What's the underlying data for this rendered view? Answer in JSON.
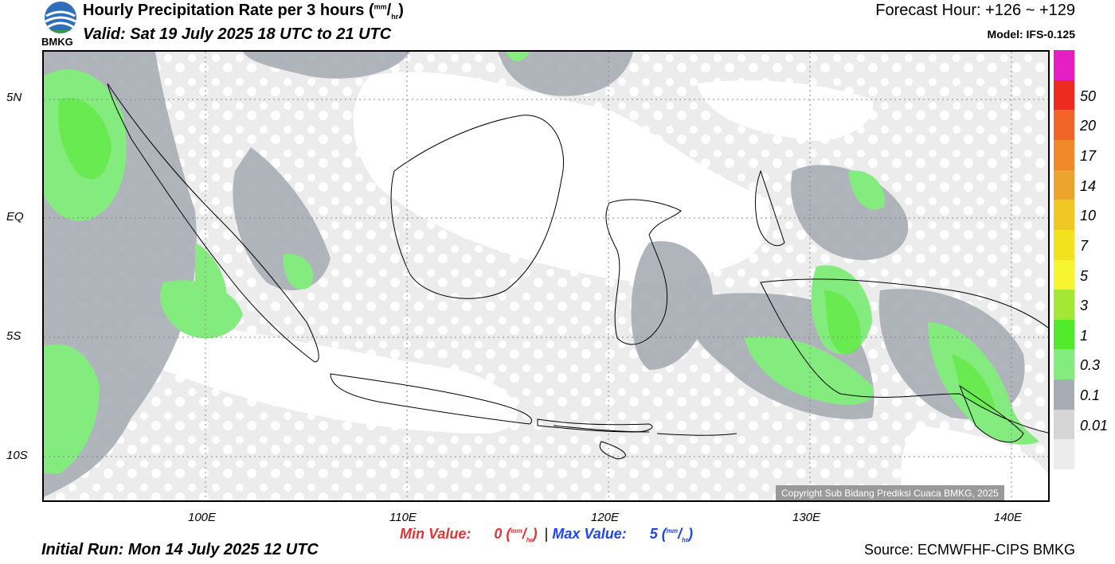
{
  "header": {
    "title": "Hourly Precipitation Rate per 3 hours",
    "title_unit_num": "mm",
    "title_unit_den": "hr",
    "valid": "Valid: Sat 19 July 2025 18 UTC to 21 UTC",
    "forecast_hour": "Forecast Hour: +126 ~ +129",
    "model": "Model: IFS-0.125",
    "logo_text": "BMKG"
  },
  "map": {
    "lat_labels": [
      "5N",
      "EQ",
      "5S",
      "10S"
    ],
    "lon_labels": [
      "100E",
      "110E",
      "120E",
      "130E",
      "140E"
    ],
    "copyright": "Copyright Sub Bidang Prediksi Cuaca BMKG, 2025"
  },
  "legend": {
    "labels": [
      "50",
      "20",
      "17",
      "14",
      "10",
      "7",
      "5",
      "3",
      "1",
      "0.3",
      "0.1",
      "0.01"
    ],
    "colors": [
      "#e51fc4",
      "#ee2b21",
      "#f0642a",
      "#f1892b",
      "#eba52d",
      "#f0c824",
      "#f1e21d",
      "#f6f52f",
      "#a3e835",
      "#52ea2a",
      "#84ec7f",
      "#a8adb5",
      "#d6d6d6",
      "#ececec"
    ]
  },
  "footer": {
    "min_label": "Min Value:",
    "min_value": "0",
    "max_label": "Max Value:",
    "max_value": "5",
    "unit_num": "mm",
    "unit_den": "hr",
    "separator": "|",
    "initial_run": "Initial Run: Mon 14 July 2025 12 UTC",
    "source": "Source: ECMWFHF-CIPS BMKG"
  }
}
